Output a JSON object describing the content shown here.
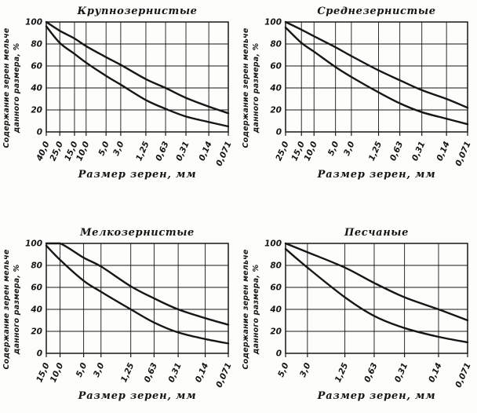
{
  "page": {
    "background_color": "#fdfdfb",
    "ink_color": "#161616",
    "figure_description": "Four grain-size distribution envelope charts"
  },
  "chart_data": [
    {
      "type": "line",
      "title": "Крупнозернистые",
      "xlabel": "Размер зерен, мм",
      "ylabel": "Содержание зерен мельче данного размера, %",
      "ylabel_lines": [
        "Содержание зерен мельче",
        "данного размера, %"
      ],
      "x_scale": "log-descending",
      "x_ticks": [
        40.0,
        25.0,
        15.0,
        10.0,
        5.0,
        3.0,
        1.25,
        0.63,
        0.31,
        0.14,
        0.071
      ],
      "x_tick_labels": [
        "40,0",
        "25,0",
        "15,0",
        "10,0",
        "5,0",
        "3,0",
        "1,25",
        "0,63",
        "0,31",
        "0,14",
        "0,071"
      ],
      "y_ticks": [
        0,
        20,
        40,
        60,
        80,
        100
      ],
      "y_tick_labels": [
        "0",
        "20",
        "40",
        "60",
        "80",
        "100"
      ],
      "ylim": [
        0,
        100
      ],
      "grid": true,
      "legend": "none",
      "series": [
        {
          "name": "upper-envelope",
          "values": [
            100,
            92,
            85,
            78,
            68,
            61,
            48,
            40,
            31,
            23,
            17
          ]
        },
        {
          "name": "lower-envelope",
          "values": [
            96,
            81,
            71,
            63,
            51,
            43,
            29,
            21,
            14,
            9,
            5
          ]
        }
      ]
    },
    {
      "type": "line",
      "title": "Среднезернистые",
      "xlabel": "Размер зерен, мм",
      "ylabel": "Содержание зерен мельче данного размера, %",
      "ylabel_lines": [
        "Содержание зерен мельче",
        "данного размера, %"
      ],
      "x_scale": "log-descending",
      "x_ticks": [
        25.0,
        15.0,
        10.0,
        5.0,
        3.0,
        1.25,
        0.63,
        0.31,
        0.14,
        0.071
      ],
      "x_tick_labels": [
        "25,0",
        "15,0",
        "10,0",
        "5,0",
        "3,0",
        "1,25",
        "0,63",
        "0,31",
        "0,14",
        "0,071"
      ],
      "y_ticks": [
        0,
        20,
        40,
        60,
        80,
        100
      ],
      "y_tick_labels": [
        "0",
        "20",
        "40",
        "60",
        "80",
        "100"
      ],
      "ylim": [
        0,
        100
      ],
      "grid": true,
      "legend": "none",
      "series": [
        {
          "name": "upper-envelope",
          "values": [
            100,
            93,
            87,
            77,
            69,
            56,
            47,
            38,
            30,
            22
          ]
        },
        {
          "name": "lower-envelope",
          "values": [
            95,
            81,
            73,
            59,
            50,
            36,
            26,
            18,
            12,
            7
          ]
        }
      ]
    },
    {
      "type": "line",
      "title": "Мелкозернистые",
      "xlabel": "Размер зерен, мм",
      "ylabel": "Содержание зерен мельче данного размера, %",
      "ylabel_lines": [
        "Содержание зерен мельче",
        "данного размера, %"
      ],
      "x_scale": "log-descending",
      "x_ticks": [
        15.0,
        10.0,
        5.0,
        3.0,
        1.25,
        0.63,
        0.31,
        0.14,
        0.071
      ],
      "x_tick_labels": [
        "15,0",
        "10,0",
        "5,0",
        "3,0",
        "1,25",
        "0,63",
        "0,31",
        "0,14",
        "0,071"
      ],
      "y_ticks": [
        0,
        20,
        40,
        60,
        80,
        100
      ],
      "y_tick_labels": [
        "0",
        "20",
        "40",
        "60",
        "80",
        "100"
      ],
      "ylim": [
        0,
        100
      ],
      "grid": true,
      "legend": "none",
      "series": [
        {
          "name": "upper-envelope",
          "values": [
            100,
            100,
            87,
            79,
            61,
            50,
            40,
            32,
            26
          ]
        },
        {
          "name": "lower-envelope",
          "values": [
            98,
            85,
            66,
            56,
            40,
            28,
            19,
            13,
            9
          ]
        }
      ]
    },
    {
      "type": "line",
      "title": "Песчаные",
      "xlabel": "Размер зерен, мм",
      "ylabel": "Содержание зерен мельче данного размера, %",
      "ylabel_lines": [
        "Содержание зерен мельче",
        "данного размера, %"
      ],
      "x_scale": "log-descending",
      "x_ticks": [
        5.0,
        3.0,
        1.25,
        0.63,
        0.31,
        0.14,
        0.071
      ],
      "x_tick_labels": [
        "5,0",
        "3,0",
        "1,25",
        "0,63",
        "0,31",
        "0,14",
        "0,071"
      ],
      "y_ticks": [
        0,
        20,
        40,
        60,
        80,
        100
      ],
      "y_tick_labels": [
        "0",
        "20",
        "40",
        "60",
        "80",
        "100"
      ],
      "ylim": [
        0,
        100
      ],
      "grid": true,
      "legend": "none",
      "series": [
        {
          "name": "upper-envelope",
          "values": [
            100,
            92,
            78,
            64,
            51,
            40,
            30
          ]
        },
        {
          "name": "lower-envelope",
          "values": [
            95,
            78,
            51,
            34,
            23,
            15,
            10
          ]
        }
      ]
    }
  ]
}
